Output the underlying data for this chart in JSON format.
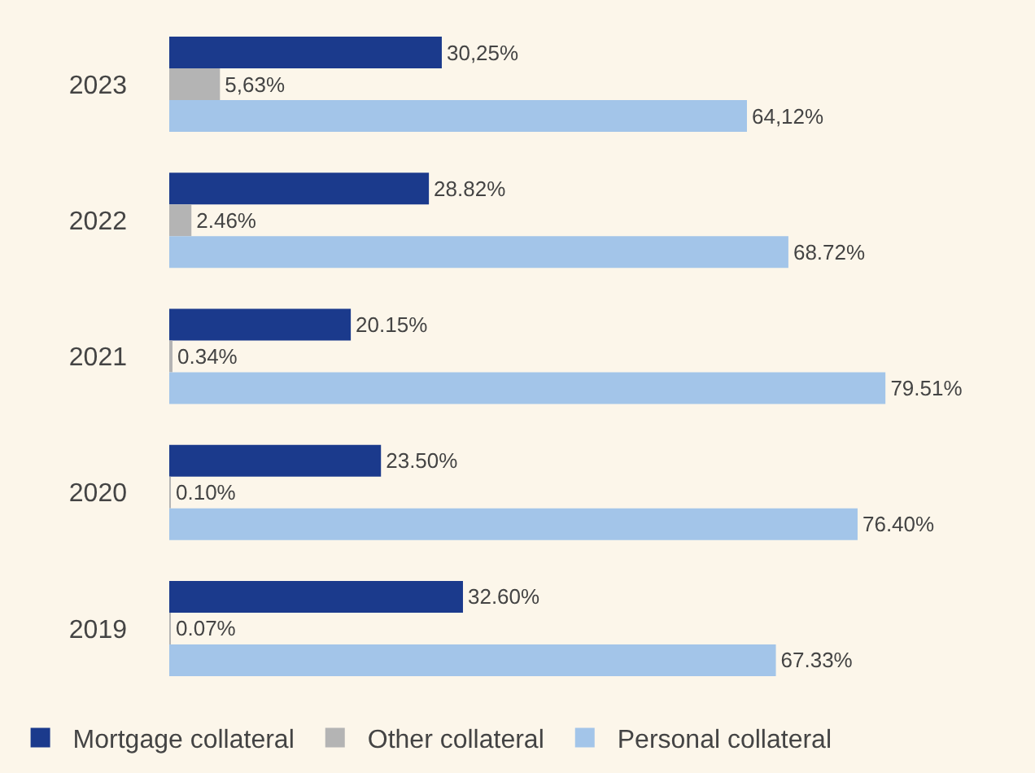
{
  "chart_data": {
    "type": "bar",
    "orientation": "horizontal",
    "categories": [
      "2023",
      "2022",
      "2021",
      "2020",
      "2019"
    ],
    "series": [
      {
        "name": "Mortgage collateral",
        "color": "#1b3a8c",
        "values": [
          30.25,
          28.82,
          20.15,
          23.5,
          32.6
        ],
        "value_labels": [
          "30,25%",
          "28.82%",
          "20.15%",
          "23.50%",
          "32.60%"
        ]
      },
      {
        "name": "Other collateral",
        "color": "#b4b4b4",
        "values": [
          5.63,
          2.46,
          0.34,
          0.1,
          0.07
        ],
        "value_labels": [
          "5,63%",
          "2.46%",
          "0.34%",
          "0.10%",
          "0.07%"
        ]
      },
      {
        "name": "Personal collateral",
        "color": "#a3c5e9",
        "values": [
          64.12,
          68.72,
          79.51,
          76.4,
          67.33
        ],
        "value_labels": [
          "64,12%",
          "68.72%",
          "79.51%",
          "76.40%",
          "67.33%"
        ]
      }
    ],
    "legend": "bottom",
    "grid": false,
    "tick_labels": "y"
  }
}
